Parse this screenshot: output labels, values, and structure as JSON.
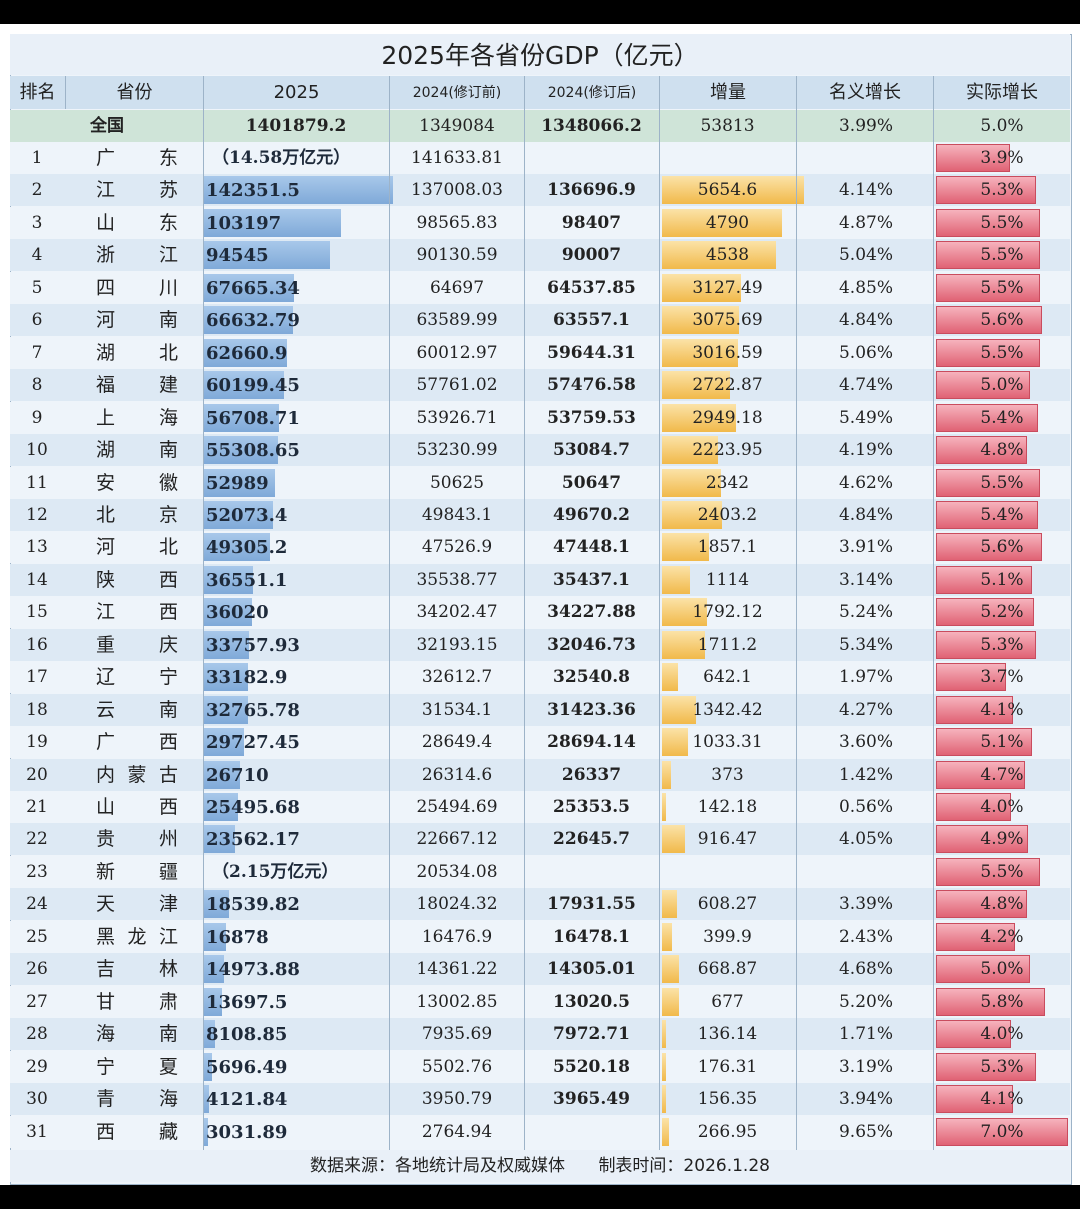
{
  "title": "2025年各省份GDP（亿元）",
  "headers": {
    "rank": "排名",
    "province": "省份",
    "gdp2025": "2025",
    "gdp2024_pre": "2024(修订前)",
    "gdp2024_post": "2024(修订后)",
    "increase": "增量",
    "nominal_growth": "名义增长",
    "real_growth": "实际增长"
  },
  "national": {
    "label": "全国",
    "gdp2025": "1401879.2",
    "gdp2024_pre": "1349084",
    "gdp2024_post": "1348066.2",
    "increase": "53813",
    "nominal_growth": "3.99%",
    "real_growth": "5.0%"
  },
  "colors": {
    "gdp_bar": "#7fa9d8",
    "increase_bar": "#f1b94a",
    "real_growth_bar": "#e06274",
    "header_bg": "#cfe0ef"
  },
  "chart_data": {
    "type": "table",
    "title": "2025年各省份GDP（亿元）",
    "columns": [
      "排名",
      "省份",
      "2025",
      "2024(修订前)",
      "2024(修订后)",
      "增量",
      "名义增长",
      "实际增长"
    ],
    "rows": [
      {
        "rank": "1",
        "province": "广东",
        "gdp2025": "（14.58万亿元）",
        "gdp2025_value": 145800,
        "pre": "141633.81",
        "post": "",
        "inc": "",
        "inc_value": 0,
        "nom": "",
        "real": "3.9%",
        "real_value": 3.9
      },
      {
        "rank": "2",
        "province": "江苏",
        "gdp2025": "142351.5",
        "gdp2025_value": 142351.5,
        "pre": "137008.03",
        "post": "136696.9",
        "inc": "5654.6",
        "inc_value": 5654.6,
        "nom": "4.14%",
        "real": "5.3%",
        "real_value": 5.3
      },
      {
        "rank": "3",
        "province": "山东",
        "gdp2025": "103197",
        "gdp2025_value": 103197,
        "pre": "98565.83",
        "post": "98407",
        "inc": "4790",
        "inc_value": 4790,
        "nom": "4.87%",
        "real": "5.5%",
        "real_value": 5.5
      },
      {
        "rank": "4",
        "province": "浙江",
        "gdp2025": "94545",
        "gdp2025_value": 94545,
        "pre": "90130.59",
        "post": "90007",
        "inc": "4538",
        "inc_value": 4538,
        "nom": "5.04%",
        "real": "5.5%",
        "real_value": 5.5
      },
      {
        "rank": "5",
        "province": "四川",
        "gdp2025": "67665.34",
        "gdp2025_value": 67665.34,
        "pre": "64697",
        "post": "64537.85",
        "inc": "3127.49",
        "inc_value": 3127.49,
        "nom": "4.85%",
        "real": "5.5%",
        "real_value": 5.5
      },
      {
        "rank": "6",
        "province": "河南",
        "gdp2025": "66632.79",
        "gdp2025_value": 66632.79,
        "pre": "63589.99",
        "post": "63557.1",
        "inc": "3075.69",
        "inc_value": 3075.69,
        "nom": "4.84%",
        "real": "5.6%",
        "real_value": 5.6
      },
      {
        "rank": "7",
        "province": "湖北",
        "gdp2025": "62660.9",
        "gdp2025_value": 62660.9,
        "pre": "60012.97",
        "post": "59644.31",
        "inc": "3016.59",
        "inc_value": 3016.59,
        "nom": "5.06%",
        "real": "5.5%",
        "real_value": 5.5
      },
      {
        "rank": "8",
        "province": "福建",
        "gdp2025": "60199.45",
        "gdp2025_value": 60199.45,
        "pre": "57761.02",
        "post": "57476.58",
        "inc": "2722.87",
        "inc_value": 2722.87,
        "nom": "4.74%",
        "real": "5.0%",
        "real_value": 5.0
      },
      {
        "rank": "9",
        "province": "上海",
        "gdp2025": "56708.71",
        "gdp2025_value": 56708.71,
        "pre": "53926.71",
        "post": "53759.53",
        "inc": "2949.18",
        "inc_value": 2949.18,
        "nom": "5.49%",
        "real": "5.4%",
        "real_value": 5.4
      },
      {
        "rank": "10",
        "province": "湖南",
        "gdp2025": "55308.65",
        "gdp2025_value": 55308.65,
        "pre": "53230.99",
        "post": "53084.7",
        "inc": "2223.95",
        "inc_value": 2223.95,
        "nom": "4.19%",
        "real": "4.8%",
        "real_value": 4.8
      },
      {
        "rank": "11",
        "province": "安徽",
        "gdp2025": "52989",
        "gdp2025_value": 52989,
        "pre": "50625",
        "post": "50647",
        "inc": "2342",
        "inc_value": 2342,
        "nom": "4.62%",
        "real": "5.5%",
        "real_value": 5.5
      },
      {
        "rank": "12",
        "province": "北京",
        "gdp2025": "52073.4",
        "gdp2025_value": 52073.4,
        "pre": "49843.1",
        "post": "49670.2",
        "inc": "2403.2",
        "inc_value": 2403.2,
        "nom": "4.84%",
        "real": "5.4%",
        "real_value": 5.4
      },
      {
        "rank": "13",
        "province": "河北",
        "gdp2025": "49305.2",
        "gdp2025_value": 49305.2,
        "pre": "47526.9",
        "post": "47448.1",
        "inc": "1857.1",
        "inc_value": 1857.1,
        "nom": "3.91%",
        "real": "5.6%",
        "real_value": 5.6
      },
      {
        "rank": "14",
        "province": "陕西",
        "gdp2025": "36551.1",
        "gdp2025_value": 36551.1,
        "pre": "35538.77",
        "post": "35437.1",
        "inc": "1114",
        "inc_value": 1114,
        "nom": "3.14%",
        "real": "5.1%",
        "real_value": 5.1
      },
      {
        "rank": "15",
        "province": "江西",
        "gdp2025": "36020",
        "gdp2025_value": 36020,
        "pre": "34202.47",
        "post": "34227.88",
        "inc": "1792.12",
        "inc_value": 1792.12,
        "nom": "5.24%",
        "real": "5.2%",
        "real_value": 5.2
      },
      {
        "rank": "16",
        "province": "重庆",
        "gdp2025": "33757.93",
        "gdp2025_value": 33757.93,
        "pre": "32193.15",
        "post": "32046.73",
        "inc": "1711.2",
        "inc_value": 1711.2,
        "nom": "5.34%",
        "real": "5.3%",
        "real_value": 5.3
      },
      {
        "rank": "17",
        "province": "辽宁",
        "gdp2025": "33182.9",
        "gdp2025_value": 33182.9,
        "pre": "32612.7",
        "post": "32540.8",
        "inc": "642.1",
        "inc_value": 642.1,
        "nom": "1.97%",
        "real": "3.7%",
        "real_value": 3.7
      },
      {
        "rank": "18",
        "province": "云南",
        "gdp2025": "32765.78",
        "gdp2025_value": 32765.78,
        "pre": "31534.1",
        "post": "31423.36",
        "inc": "1342.42",
        "inc_value": 1342.42,
        "nom": "4.27%",
        "real": "4.1%",
        "real_value": 4.1
      },
      {
        "rank": "19",
        "province": "广西",
        "gdp2025": "29727.45",
        "gdp2025_value": 29727.45,
        "pre": "28649.4",
        "post": "28694.14",
        "inc": "1033.31",
        "inc_value": 1033.31,
        "nom": "3.60%",
        "real": "5.1%",
        "real_value": 5.1
      },
      {
        "rank": "20",
        "province": "内蒙古",
        "gdp2025": "26710",
        "gdp2025_value": 26710,
        "pre": "26314.6",
        "post": "26337",
        "inc": "373",
        "inc_value": 373,
        "nom": "1.42%",
        "real": "4.7%",
        "real_value": 4.7
      },
      {
        "rank": "21",
        "province": "山西",
        "gdp2025": "25495.68",
        "gdp2025_value": 25495.68,
        "pre": "25494.69",
        "post": "25353.5",
        "inc": "142.18",
        "inc_value": 142.18,
        "nom": "0.56%",
        "real": "4.0%",
        "real_value": 4.0
      },
      {
        "rank": "22",
        "province": "贵州",
        "gdp2025": "23562.17",
        "gdp2025_value": 23562.17,
        "pre": "22667.12",
        "post": "22645.7",
        "inc": "916.47",
        "inc_value": 916.47,
        "nom": "4.05%",
        "real": "4.9%",
        "real_value": 4.9
      },
      {
        "rank": "23",
        "province": "新疆",
        "gdp2025": "（2.15万亿元）",
        "gdp2025_value": 21500,
        "pre": "20534.08",
        "post": "",
        "inc": "",
        "inc_value": 0,
        "nom": "",
        "real": "5.5%",
        "real_value": 5.5
      },
      {
        "rank": "24",
        "province": "天津",
        "gdp2025": "18539.82",
        "gdp2025_value": 18539.82,
        "pre": "18024.32",
        "post": "17931.55",
        "inc": "608.27",
        "inc_value": 608.27,
        "nom": "3.39%",
        "real": "4.8%",
        "real_value": 4.8
      },
      {
        "rank": "25",
        "province": "黑龙江",
        "gdp2025": "16878",
        "gdp2025_value": 16878,
        "pre": "16476.9",
        "post": "16478.1",
        "inc": "399.9",
        "inc_value": 399.9,
        "nom": "2.43%",
        "real": "4.2%",
        "real_value": 4.2
      },
      {
        "rank": "26",
        "province": "吉林",
        "gdp2025": "14973.88",
        "gdp2025_value": 14973.88,
        "pre": "14361.22",
        "post": "14305.01",
        "inc": "668.87",
        "inc_value": 668.87,
        "nom": "4.68%",
        "real": "5.0%",
        "real_value": 5.0
      },
      {
        "rank": "27",
        "province": "甘肃",
        "gdp2025": "13697.5",
        "gdp2025_value": 13697.5,
        "pre": "13002.85",
        "post": "13020.5",
        "inc": "677",
        "inc_value": 677,
        "nom": "5.20%",
        "real": "5.8%",
        "real_value": 5.8
      },
      {
        "rank": "28",
        "province": "海南",
        "gdp2025": "8108.85",
        "gdp2025_value": 8108.85,
        "pre": "7935.69",
        "post": "7972.71",
        "inc": "136.14",
        "inc_value": 136.14,
        "nom": "1.71%",
        "real": "4.0%",
        "real_value": 4.0
      },
      {
        "rank": "29",
        "province": "宁夏",
        "gdp2025": "5696.49",
        "gdp2025_value": 5696.49,
        "pre": "5502.76",
        "post": "5520.18",
        "inc": "176.31",
        "inc_value": 176.31,
        "nom": "3.19%",
        "real": "5.3%",
        "real_value": 5.3
      },
      {
        "rank": "30",
        "province": "青海",
        "gdp2025": "4121.84",
        "gdp2025_value": 4121.84,
        "pre": "3950.79",
        "post": "3965.49",
        "inc": "156.35",
        "inc_value": 156.35,
        "nom": "3.94%",
        "real": "4.1%",
        "real_value": 4.1
      },
      {
        "rank": "31",
        "province": "西藏",
        "gdp2025": "3031.89",
        "gdp2025_value": 3031.89,
        "pre": "2764.94",
        "post": "",
        "inc": "266.95",
        "inc_value": 266.95,
        "nom": "9.65%",
        "real": "7.0%",
        "real_value": 7.0
      }
    ]
  },
  "footer": {
    "source": "数据来源：各地统计局及权威媒体",
    "date": "制表时间：2026.1.28"
  }
}
